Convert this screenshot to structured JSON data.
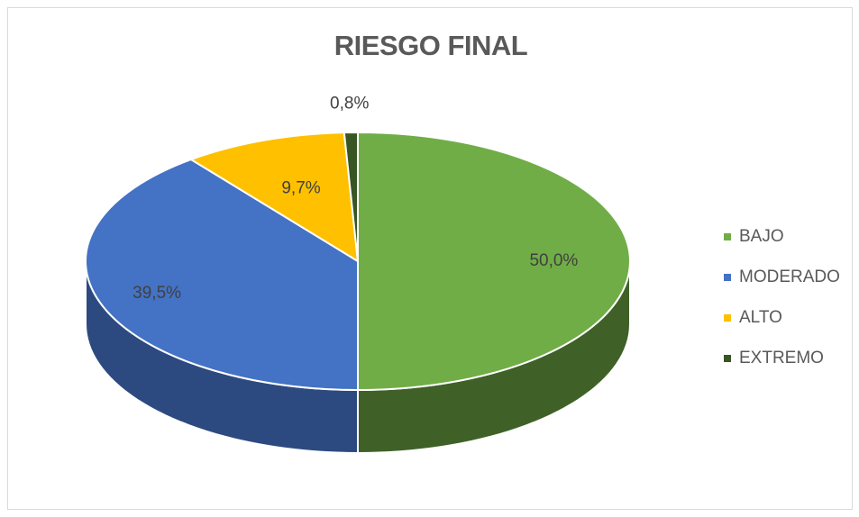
{
  "chart_data": {
    "type": "pie",
    "title": "RIESGO FINAL",
    "categories": [
      "BAJO",
      "MODERADO",
      "ALTO",
      "EXTREMO"
    ],
    "values": [
      50.0,
      39.5,
      9.7,
      0.8
    ],
    "labels": [
      "50,0%",
      "39,5%",
      "9,7%",
      "0,8%"
    ],
    "colors": [
      "#70ad47",
      "#4472c4",
      "#ffc000",
      "#375623"
    ],
    "side_colors": [
      "#3f6127",
      "#2d4a80",
      "#b08500",
      "#25391a"
    ],
    "legend": "right",
    "style": "3d"
  }
}
